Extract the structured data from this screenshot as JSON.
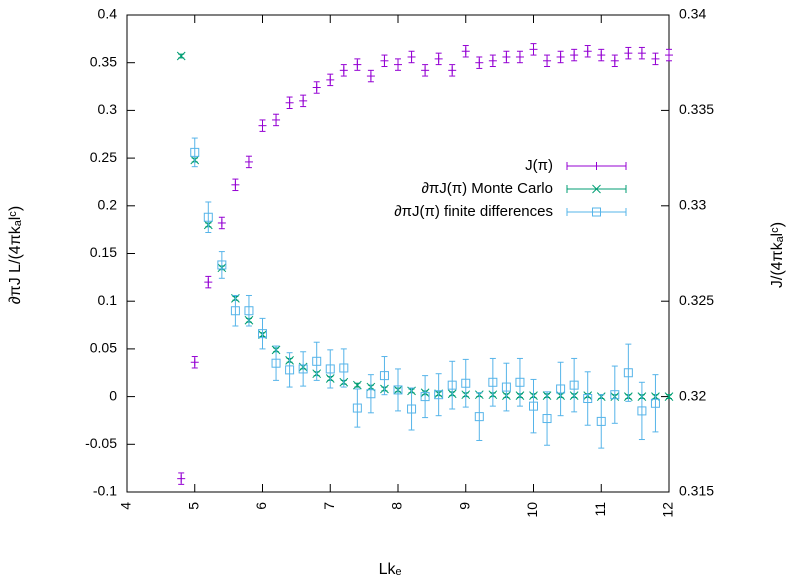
{
  "chart_data": {
    "type": "scatter",
    "xlabel": "Lkₑ",
    "ylabel_left": "∂πJ L/(4πkₐlᶜ)",
    "ylabel_right": "J/(4πkₐlᶜ)",
    "xlim": [
      4,
      12
    ],
    "ylim_left": [
      -0.1,
      0.4
    ],
    "ylim_right": [
      0.315,
      0.34
    ],
    "x_ticks": [
      "4",
      "5",
      "6",
      "7",
      "8",
      "9",
      "10",
      "11",
      "12"
    ],
    "y_ticks_left": [
      "-0.1",
      "-0.05",
      "0",
      "0.05",
      "0.1",
      "0.15",
      "0.2",
      "0.25",
      "0.3",
      "0.35",
      "0.4"
    ],
    "y_ticks_right": [
      "0.315",
      "0.32",
      "0.325",
      "0.33",
      "0.335",
      "0.34"
    ],
    "grid": false,
    "legend_position": "center-right",
    "series": [
      {
        "name": "J(π)",
        "axis": "right",
        "marker": "plus",
        "color": "#9400d3",
        "x": [
          4.8,
          5.0,
          5.2,
          5.4,
          5.6,
          5.8,
          6.0,
          6.2,
          6.4,
          6.6,
          6.8,
          7.0,
          7.2,
          7.4,
          7.6,
          7.8,
          8.0,
          8.2,
          8.4,
          8.6,
          8.8,
          9.0,
          9.2,
          9.4,
          9.6,
          9.8,
          10.0,
          10.2,
          10.4,
          10.6,
          10.8,
          11.0,
          11.2,
          11.4,
          11.6,
          11.8,
          12.0
        ],
        "y": [
          0.3157,
          0.3218,
          0.326,
          0.3291,
          0.3311,
          0.3323,
          0.3342,
          0.3345,
          0.3354,
          0.3355,
          0.3362,
          0.3366,
          0.3371,
          0.3374,
          0.3368,
          0.3376,
          0.3374,
          0.3378,
          0.3371,
          0.3377,
          0.3371,
          0.3381,
          0.3375,
          0.3376,
          0.3378,
          0.3378,
          0.3382,
          0.3376,
          0.3378,
          0.3379,
          0.3381,
          0.3379,
          0.3376,
          0.338,
          0.338,
          0.3377,
          0.3379
        ],
        "err": [
          0.0003,
          0.0003,
          0.0003,
          0.0003,
          0.0003,
          0.0003,
          0.0003,
          0.0003,
          0.0003,
          0.0003,
          0.0003,
          0.0003,
          0.0003,
          0.0003,
          0.0003,
          0.0003,
          0.0003,
          0.0003,
          0.0003,
          0.0003,
          0.0003,
          0.0003,
          0.0003,
          0.0003,
          0.0003,
          0.0003,
          0.0003,
          0.0003,
          0.0003,
          0.0003,
          0.0003,
          0.0003,
          0.0003,
          0.0003,
          0.0003,
          0.0003,
          0.0003
        ]
      },
      {
        "name": "∂πJ(π) Monte Carlo",
        "axis": "left",
        "marker": "cross",
        "color": "#009e73",
        "x": [
          4.8,
          5.0,
          5.2,
          5.4,
          5.6,
          5.8,
          6.0,
          6.2,
          6.4,
          6.6,
          6.8,
          7.0,
          7.2,
          7.4,
          7.6,
          7.8,
          8.0,
          8.2,
          8.4,
          8.6,
          8.8,
          9.0,
          9.2,
          9.4,
          9.6,
          9.8,
          10.0,
          10.2,
          10.4,
          10.6,
          10.8,
          11.0,
          11.2,
          11.4,
          11.6,
          11.8,
          12.0
        ],
        "y": [
          0.357,
          0.248,
          0.18,
          0.135,
          0.103,
          0.08,
          0.065,
          0.049,
          0.038,
          0.031,
          0.024,
          0.019,
          0.015,
          0.012,
          0.01,
          0.008,
          0.007,
          0.006,
          0.004,
          0.003,
          0.003,
          0.002,
          0.002,
          0.002,
          0.001,
          0.001,
          0.001,
          0.001,
          0.001,
          0.001,
          0.001,
          0.0,
          0.0,
          0.0,
          0.0,
          0.0,
          0.0
        ],
        "err": [
          0.002,
          0.002,
          0.002,
          0.002,
          0.002,
          0.002,
          0.002,
          0.002,
          0.002,
          0.002,
          0.002,
          0.002,
          0.002,
          0.002,
          0.002,
          0.002,
          0.002,
          0.002,
          0.002,
          0.002,
          0.002,
          0.002,
          0.002,
          0.002,
          0.002,
          0.002,
          0.002,
          0.002,
          0.002,
          0.002,
          0.002,
          0.002,
          0.002,
          0.002,
          0.002,
          0.002,
          0.002
        ]
      },
      {
        "name": "∂πJ(π) finite differences",
        "axis": "left",
        "marker": "square",
        "color": "#56b4e9",
        "x": [
          5.0,
          5.2,
          5.4,
          5.6,
          5.8,
          6.0,
          6.2,
          6.4,
          6.6,
          6.8,
          7.0,
          7.2,
          7.4,
          7.6,
          7.8,
          8.0,
          8.2,
          8.4,
          8.6,
          8.8,
          9.0,
          9.2,
          9.4,
          9.6,
          9.8,
          10.0,
          10.2,
          10.4,
          10.6,
          10.8,
          11.0,
          11.2,
          11.4,
          11.6,
          11.8
        ],
        "y": [
          0.256,
          0.188,
          0.138,
          0.09,
          0.09,
          0.066,
          0.035,
          0.028,
          0.029,
          0.037,
          0.029,
          0.03,
          -0.012,
          0.003,
          0.022,
          0.007,
          -0.013,
          0.0,
          0.002,
          0.012,
          0.014,
          -0.021,
          0.015,
          0.01,
          0.015,
          -0.01,
          -0.023,
          0.008,
          0.012,
          -0.002,
          -0.026,
          0.002,
          0.025,
          -0.015,
          -0.007
        ],
        "err": [
          0.015,
          0.016,
          0.014,
          0.016,
          0.016,
          0.016,
          0.018,
          0.018,
          0.018,
          0.02,
          0.02,
          0.02,
          0.02,
          0.02,
          0.02,
          0.022,
          0.022,
          0.022,
          0.022,
          0.025,
          0.025,
          0.025,
          0.025,
          0.025,
          0.025,
          0.028,
          0.028,
          0.028,
          0.028,
          0.028,
          0.028,
          0.03,
          0.03,
          0.03,
          0.03
        ]
      }
    ]
  }
}
